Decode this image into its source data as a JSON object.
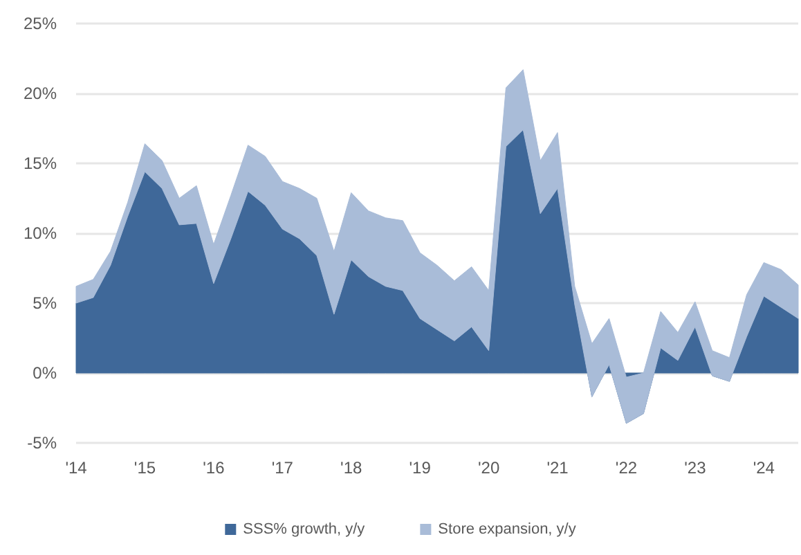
{
  "chart_data": {
    "type": "area",
    "stacked": true,
    "x": [
      2014,
      2014.25,
      2014.5,
      2014.75,
      2015,
      2015.25,
      2015.5,
      2015.75,
      2016,
      2016.25,
      2016.5,
      2016.75,
      2017,
      2017.25,
      2017.5,
      2017.75,
      2018,
      2018.25,
      2018.5,
      2018.75,
      2019,
      2019.25,
      2019.5,
      2019.75,
      2020,
      2020.25,
      2020.5,
      2020.75,
      2021,
      2021.25,
      2021.5,
      2021.75,
      2022,
      2022.25,
      2022.5,
      2022.75,
      2023,
      2023.25,
      2023.5,
      2023.75,
      2024,
      2024.25,
      2024.5
    ],
    "series": [
      {
        "name": "SSS% growth, y/y",
        "color": "#3f6899",
        "values": [
          5.0,
          5.4,
          7.7,
          11.2,
          14.4,
          13.2,
          10.6,
          10.7,
          6.4,
          9.6,
          13.0,
          12.0,
          10.3,
          9.6,
          8.4,
          4.2,
          8.1,
          6.9,
          6.2,
          5.9,
          3.9,
          3.1,
          2.3,
          3.3,
          1.6,
          16.2,
          17.4,
          11.4,
          13.2,
          4.9,
          -1.7,
          0.6,
          -3.6,
          -2.9,
          1.8,
          0.9,
          3.3,
          -0.2,
          -0.6,
          2.6,
          5.5,
          4.7,
          3.9
        ]
      },
      {
        "name": "Store expansion, y/y",
        "color": "#a9bcd8",
        "values": [
          1.2,
          1.3,
          1.0,
          1.0,
          2.0,
          2.0,
          1.9,
          2.7,
          2.8,
          3.1,
          3.3,
          3.5,
          3.4,
          3.6,
          4.1,
          4.5,
          4.8,
          4.7,
          4.9,
          5.0,
          4.7,
          4.6,
          4.3,
          4.3,
          4.3,
          4.2,
          4.3,
          3.8,
          4.0,
          1.3,
          3.8,
          3.3,
          3.3,
          2.9,
          2.6,
          2.0,
          1.8,
          1.8,
          1.7,
          3.0,
          2.4,
          2.7,
          2.4
        ]
      }
    ],
    "xlim": [
      2014,
      2024.5
    ],
    "xticks": [
      {
        "value": 2014,
        "label": "'14"
      },
      {
        "value": 2015,
        "label": "'15"
      },
      {
        "value": 2016,
        "label": "'16"
      },
      {
        "value": 2017,
        "label": "'17"
      },
      {
        "value": 2018,
        "label": "'18"
      },
      {
        "value": 2019,
        "label": "'19"
      },
      {
        "value": 2020,
        "label": "'20"
      },
      {
        "value": 2021,
        "label": "'21"
      },
      {
        "value": 2022,
        "label": "'22"
      },
      {
        "value": 2023,
        "label": "'23"
      },
      {
        "value": 2024,
        "label": "'24"
      }
    ],
    "ylim": [
      -5,
      25
    ],
    "yticks": [
      {
        "value": -5,
        "label": "-5%"
      },
      {
        "value": 0,
        "label": "0%"
      },
      {
        "value": 5,
        "label": "5%"
      },
      {
        "value": 10,
        "label": "10%"
      },
      {
        "value": 15,
        "label": "15%"
      },
      {
        "value": 20,
        "label": "20%"
      },
      {
        "value": 25,
        "label": "25%"
      }
    ],
    "grid": "y",
    "legend": "bottom"
  }
}
